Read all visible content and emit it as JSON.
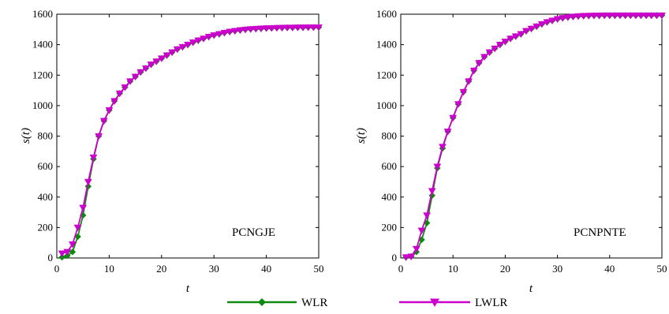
{
  "colors": {
    "wlr": "#0f8a0f",
    "lwlr": "#cc00cc"
  },
  "legend": [
    {
      "label": "WLR",
      "color": "#0f8a0f",
      "marker": "diamond"
    },
    {
      "label": "LWLR",
      "color": "#cc00cc",
      "marker": "triangle-down"
    }
  ],
  "chart_data": [
    {
      "type": "line",
      "annotation": "PCNGJE",
      "xlabel": "t",
      "ylabel": "s(t)",
      "xlim": [
        0,
        50
      ],
      "ylim": [
        0,
        1600
      ],
      "xticks": [
        0,
        10,
        20,
        30,
        40,
        50
      ],
      "yticks": [
        0,
        200,
        400,
        600,
        800,
        1000,
        1200,
        1400,
        1600
      ],
      "grid": false,
      "x": [
        1,
        2,
        3,
        4,
        5,
        6,
        7,
        8,
        9,
        10,
        11,
        12,
        13,
        14,
        15,
        16,
        17,
        18,
        19,
        20,
        21,
        22,
        23,
        24,
        25,
        26,
        27,
        28,
        29,
        30,
        31,
        32,
        33,
        34,
        35,
        36,
        37,
        38,
        39,
        40,
        41,
        42,
        43,
        44,
        45,
        46,
        47,
        48,
        49,
        50
      ],
      "series": [
        {
          "name": "WLR",
          "color": "#0f8a0f",
          "marker": "diamond",
          "values": [
            5,
            15,
            40,
            140,
            280,
            470,
            650,
            800,
            900,
            970,
            1030,
            1080,
            1120,
            1160,
            1190,
            1220,
            1245,
            1270,
            1290,
            1310,
            1330,
            1350,
            1370,
            1385,
            1400,
            1415,
            1428,
            1440,
            1452,
            1462,
            1470,
            1478,
            1485,
            1490,
            1495,
            1499,
            1502,
            1504,
            1506,
            1508,
            1509,
            1510,
            1511,
            1512,
            1512,
            1513,
            1513,
            1514,
            1514,
            1514
          ]
        },
        {
          "name": "LWLR",
          "color": "#cc00cc",
          "marker": "triangle-down",
          "values": [
            30,
            40,
            90,
            200,
            330,
            500,
            660,
            800,
            900,
            970,
            1030,
            1080,
            1120,
            1160,
            1190,
            1220,
            1245,
            1270,
            1290,
            1310,
            1330,
            1350,
            1370,
            1385,
            1400,
            1415,
            1428,
            1440,
            1452,
            1462,
            1470,
            1478,
            1485,
            1490,
            1495,
            1499,
            1502,
            1504,
            1506,
            1508,
            1509,
            1510,
            1511,
            1512,
            1512,
            1513,
            1513,
            1514,
            1514,
            1514
          ]
        }
      ]
    },
    {
      "type": "line",
      "annotation": "PCNPNTE",
      "xlabel": "t",
      "ylabel": "s(t)",
      "xlim": [
        0,
        50
      ],
      "ylim": [
        0,
        1600
      ],
      "xticks": [
        0,
        10,
        20,
        30,
        40,
        50
      ],
      "yticks": [
        0,
        200,
        400,
        600,
        800,
        1000,
        1200,
        1400,
        1600
      ],
      "grid": false,
      "x": [
        1,
        2,
        3,
        4,
        5,
        6,
        7,
        8,
        9,
        10,
        11,
        12,
        13,
        14,
        15,
        16,
        17,
        18,
        19,
        20,
        21,
        22,
        23,
        24,
        25,
        26,
        27,
        28,
        29,
        30,
        31,
        32,
        33,
        34,
        35,
        36,
        37,
        38,
        39,
        40,
        41,
        42,
        43,
        44,
        45,
        46,
        47,
        48,
        49,
        50
      ],
      "series": [
        {
          "name": "WLR",
          "color": "#0f8a0f",
          "marker": "diamond",
          "values": [
            5,
            10,
            40,
            120,
            230,
            410,
            590,
            720,
            830,
            920,
            1010,
            1090,
            1160,
            1230,
            1280,
            1320,
            1350,
            1375,
            1400,
            1420,
            1440,
            1455,
            1470,
            1490,
            1505,
            1520,
            1535,
            1548,
            1558,
            1568,
            1575,
            1580,
            1584,
            1587,
            1589,
            1590,
            1591,
            1591,
            1592,
            1592,
            1592,
            1592,
            1592,
            1592,
            1592,
            1592,
            1592,
            1592,
            1592,
            1592
          ]
        },
        {
          "name": "LWLR",
          "color": "#cc00cc",
          "marker": "triangle-down",
          "values": [
            5,
            10,
            60,
            180,
            280,
            440,
            600,
            730,
            830,
            920,
            1010,
            1090,
            1160,
            1230,
            1280,
            1320,
            1350,
            1375,
            1400,
            1420,
            1440,
            1455,
            1470,
            1490,
            1505,
            1520,
            1535,
            1548,
            1558,
            1568,
            1575,
            1580,
            1584,
            1587,
            1589,
            1590,
            1591,
            1591,
            1592,
            1592,
            1592,
            1592,
            1592,
            1592,
            1592,
            1592,
            1592,
            1592,
            1592,
            1592
          ]
        }
      ]
    }
  ]
}
